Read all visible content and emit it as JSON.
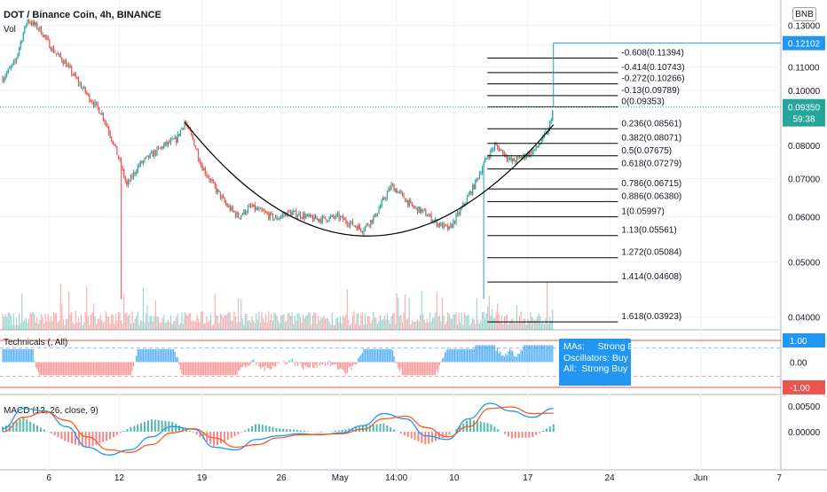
{
  "header": {
    "title": "DOT / Binance Coin, 4h, BINANCE",
    "volume_label": "Vol",
    "currency_badge": "BNB",
    "technicals_title": "Technicals (, All)",
    "macd_title": "MACD (12, 26, close, 9)"
  },
  "tooltip": {
    "mas": "MAs:     Strong Buy",
    "oscillators": "Oscillators: Buy",
    "all": "All:  Strong Buy"
  },
  "colors": {
    "up": "#26a69a",
    "down": "#ef5350",
    "accent": "#2196f3",
    "macd_line": "#2196f3",
    "signal_line": "#ff5722",
    "last_price_bg": "#26a69a",
    "grid": "#f0f3fa"
  },
  "chart_data": [
    {
      "type": "candlestick",
      "title": "DOT / Binance Coin, 4h, BINANCE",
      "x_ticks": [
        "6",
        "12",
        "19",
        "26",
        "May",
        "14:00",
        "10",
        "17",
        "24",
        "Jun",
        "7"
      ],
      "y_ticks": [
        "0.13000",
        "0.12000",
        "0.11000",
        "0.10000",
        "0.08000",
        "0.07000",
        "0.06000",
        "0.05000",
        "0.04000"
      ],
      "y_scale": "log",
      "ylim": [
        0.038,
        0.14
      ],
      "price_path": [
        [
          0,
          0.105
        ],
        [
          1.5,
          0.112
        ],
        [
          3,
          0.133
        ],
        [
          4.5,
          0.128
        ],
        [
          6,
          0.118
        ],
        [
          7.5,
          0.112
        ],
        [
          9,
          0.104
        ],
        [
          10.5,
          0.097
        ],
        [
          12,
          0.091
        ],
        [
          13.5,
          0.08
        ],
        [
          15,
          0.068
        ],
        [
          16.5,
          0.074
        ],
        [
          18,
          0.077
        ],
        [
          19.5,
          0.08
        ],
        [
          21,
          0.082
        ],
        [
          22,
          0.088
        ],
        [
          23,
          0.082
        ],
        [
          24,
          0.074
        ],
        [
          25.5,
          0.068
        ],
        [
          27,
          0.063
        ],
        [
          28.5,
          0.06
        ],
        [
          30,
          0.0625
        ],
        [
          31.5,
          0.061
        ],
        [
          33,
          0.0595
        ],
        [
          34.5,
          0.061
        ],
        [
          36,
          0.0605
        ],
        [
          37.5,
          0.0595
        ],
        [
          39,
          0.0595
        ],
        [
          40.5,
          0.06
        ],
        [
          42,
          0.0585
        ],
        [
          43.5,
          0.057
        ],
        [
          45,
          0.06
        ],
        [
          46,
          0.064
        ],
        [
          47,
          0.068
        ],
        [
          48,
          0.066
        ],
        [
          49.5,
          0.0625
        ],
        [
          51,
          0.061
        ],
        [
          52.5,
          0.0585
        ],
        [
          54,
          0.057
        ],
        [
          55.5,
          0.062
        ],
        [
          57,
          0.068
        ],
        [
          58.5,
          0.076
        ],
        [
          59.5,
          0.08
        ],
        [
          60.5,
          0.078
        ],
        [
          61.5,
          0.075
        ],
        [
          63,
          0.0765
        ],
        [
          64.5,
          0.079
        ],
        [
          66,
          0.085
        ],
        [
          66.6,
          0.0935
        ]
      ],
      "last_price": "0.09350",
      "countdown": "59:38",
      "marked_price": "0.12102",
      "fib_levels": [
        {
          "label": "-0.608(0.11394)",
          "value": 0.11394
        },
        {
          "label": "-0.414(0.10743)",
          "value": 0.10743
        },
        {
          "label": "-0.272(0.10266)",
          "value": 0.10266
        },
        {
          "label": "-0.13(0.09789)",
          "value": 0.09789
        },
        {
          "label": "0(0.09353)",
          "value": 0.09353
        },
        {
          "label": "0.236(0.08561)",
          "value": 0.08561
        },
        {
          "label": "0.382(0.08071)",
          "value": 0.08071
        },
        {
          "label": "0.5(0.07675)",
          "value": 0.07675
        },
        {
          "label": "0.618(0.07279)",
          "value": 0.07279
        },
        {
          "label": "0.786(0.06715)",
          "value": 0.06715
        },
        {
          "label": "0.886(0.06380)",
          "value": 0.0638
        },
        {
          "label": "1(0.05997)",
          "value": 0.05997
        },
        {
          "label": "1.13(0.05561)",
          "value": 0.05561
        },
        {
          "label": "1.272(0.05084)",
          "value": 0.05084
        },
        {
          "label": "1.414(0.04608)",
          "value": 0.04608
        },
        {
          "label": "1.618(0.03923)",
          "value": 0.03923
        }
      ],
      "cup_curve": [
        [
          22,
          0.088
        ],
        [
          44,
          0.0555
        ],
        [
          66.6,
          0.087
        ]
      ]
    },
    {
      "type": "bar",
      "title": "Technicals (, All)",
      "y_ticks": [
        "1.00",
        "0.00",
        "-1.00"
      ],
      "ylim": [
        -1,
        1
      ]
    },
    {
      "type": "line",
      "title": "MACD (12, 26, close, 9)",
      "y_ticks": [
        "0.00500",
        "0.00000"
      ],
      "series": [
        {
          "values": [
            0.0006,
            0.0045,
            0.004,
            0.001,
            -0.003,
            -0.0045,
            -0.0035,
            -0.001,
            0.001,
            0.0005,
            -0.003,
            -0.0035,
            -0.0015,
            -0.0008,
            -0.0004,
            -0.0006,
            -0.0002,
            0.0012,
            0.0035,
            0.0025,
            -0.0008,
            -0.0015,
            0.0025,
            0.0055,
            0.004,
            0.0028,
            0.0045
          ]
        },
        {
          "values": [
            0.0,
            0.0028,
            0.0038,
            0.0022,
            -0.001,
            -0.0035,
            -0.004,
            -0.0025,
            -0.0002,
            0.0006,
            -0.0012,
            -0.003,
            -0.0025,
            -0.0012,
            -0.0006,
            -0.0005,
            -0.0004,
            0.0005,
            0.0025,
            0.003,
            0.0008,
            -0.001,
            0.001,
            0.0045,
            0.0048,
            0.0035,
            0.0036
          ]
        }
      ]
    }
  ]
}
